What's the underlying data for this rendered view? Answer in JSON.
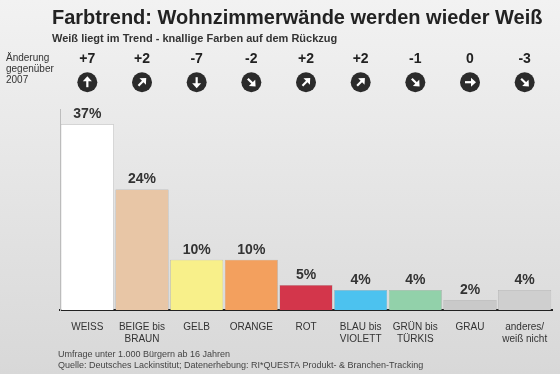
{
  "chart_data": {
    "type": "bar",
    "title": "Farbtrend: Wohnzimmerwände werden wieder Weiß",
    "subtitle": "Weiß liegt im Trend - knallige Farben auf dem Rückzug",
    "categories": [
      "WEISS",
      "BEIGE bis BRAUN",
      "GELB",
      "ORANGE",
      "ROT",
      "BLAU bis VIOLETT",
      "GRÜN bis TÜRKIS",
      "GRAU",
      "anderes/ weiß nicht"
    ],
    "values": [
      37,
      24,
      10,
      10,
      5,
      4,
      4,
      2,
      4
    ],
    "value_labels": [
      "37%",
      "24%",
      "10%",
      "10%",
      "5%",
      "4%",
      "4%",
      "2%",
      "4%"
    ],
    "colors": [
      "#ffffff",
      "#e8c6a6",
      "#f8f08a",
      "#f3a05e",
      "#d3364b",
      "#4cc2ef",
      "#92d1aa",
      "#c9c9c9",
      "#cfcfcf"
    ],
    "change_title": "Änderung gegenüber 2007",
    "changes": [
      7,
      2,
      -7,
      -2,
      2,
      2,
      -1,
      0,
      -3
    ],
    "change_labels": [
      "+7",
      "+2",
      "-7",
      "-2",
      "+2",
      "+2",
      "-1",
      "0",
      "-3"
    ],
    "notes": [
      "Umfrage unter 1.000 Bürgern ab 16 Jahren",
      "Quelle: Deutsches Lackinstitut; Datenerhebung: RI*QUESTA Produkt- & Branchen-Tracking"
    ],
    "ylim": [
      0,
      40
    ],
    "grid": false,
    "data_labels": true,
    "tick_labels": "x"
  }
}
